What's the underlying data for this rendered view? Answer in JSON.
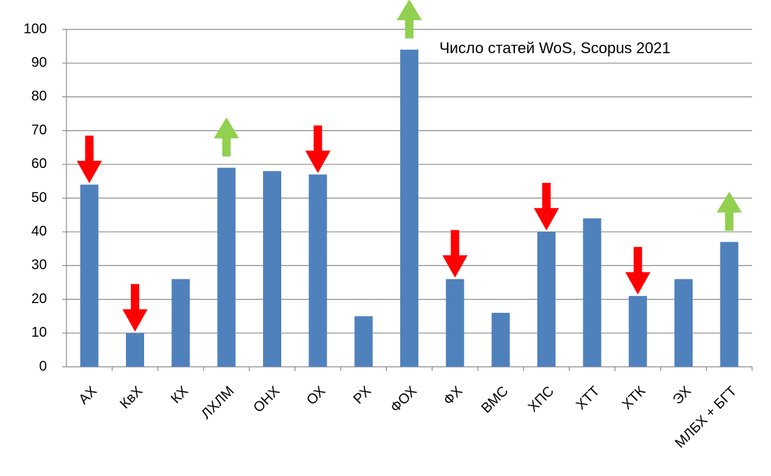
{
  "chart_data": {
    "type": "bar",
    "title": "Число статей WoS, Scopus 2021",
    "categories": [
      "АХ",
      "КвХ",
      "КХ",
      "ЛХЛМ",
      "ОНХ",
      "ОХ",
      "РХ",
      "ФОХ",
      "ФХ",
      "ВМС",
      "ХПС",
      "ХТТ",
      "ХТК",
      "ЭХ",
      "МЛБХ + БГТ"
    ],
    "values": [
      54,
      10,
      26,
      59,
      58,
      57,
      15,
      94,
      26,
      16,
      40,
      44,
      21,
      26,
      37
    ],
    "color": "#4f81bd",
    "markers": [
      "down",
      "down",
      null,
      "up",
      null,
      "down",
      null,
      "up",
      "down",
      null,
      "down",
      null,
      "down",
      null,
      "up"
    ],
    "marker_colors": {
      "down": "#ff0000",
      "up": "#92d050"
    },
    "ylim": [
      0,
      100
    ],
    "yticks": [
      0,
      10,
      20,
      30,
      40,
      50,
      60,
      70,
      80,
      90,
      100
    ],
    "grid": true
  }
}
